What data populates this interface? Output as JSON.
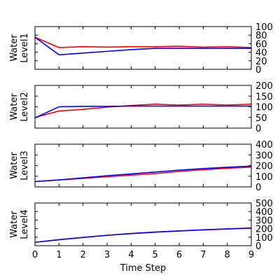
{
  "chart_data": [
    {
      "type": "line",
      "ylabel": [
        "Water",
        "Level1"
      ],
      "ylim": [
        0,
        100
      ],
      "yticks": [
        0,
        20,
        40,
        60,
        80,
        100
      ],
      "x": [
        0,
        1,
        2,
        3,
        4,
        5,
        6,
        7,
        8,
        9
      ],
      "series": [
        {
          "color": "#ff0000",
          "values": [
            75,
            51,
            53,
            52,
            53,
            53,
            54,
            52,
            53,
            51
          ]
        },
        {
          "color": "#0000ff",
          "values": [
            75,
            34,
            38,
            42,
            46,
            49,
            49,
            49,
            49,
            49
          ]
        }
      ]
    },
    {
      "type": "line",
      "ylabel": [
        "Water",
        "Level2"
      ],
      "ylim": [
        0,
        200
      ],
      "yticks": [
        0,
        50,
        100,
        150,
        200
      ],
      "x": [
        0,
        1,
        2,
        3,
        4,
        5,
        6,
        7,
        8,
        9
      ],
      "series": [
        {
          "color": "#ff0000",
          "values": [
            50,
            80,
            88,
            98,
            106,
            112,
            108,
            112,
            108,
            112
          ]
        },
        {
          "color": "#0000ff",
          "values": [
            48,
            100,
            102,
            102,
            103,
            103,
            103,
            103,
            103,
            103
          ]
        }
      ]
    },
    {
      "type": "line",
      "ylabel": [
        "Water",
        "Level3"
      ],
      "ylim": [
        0,
        400
      ],
      "yticks": [
        0,
        100,
        200,
        300,
        400
      ],
      "x": [
        0,
        1,
        2,
        3,
        4,
        5,
        6,
        7,
        8,
        9
      ],
      "series": [
        {
          "color": "#ff0000",
          "values": [
            50,
            65,
            80,
            95,
            110,
            125,
            145,
            160,
            175,
            185
          ]
        },
        {
          "color": "#0000ff",
          "values": [
            50,
            65,
            85,
            105,
            122,
            140,
            157,
            172,
            184,
            195
          ]
        }
      ]
    },
    {
      "type": "line",
      "ylabel": [
        "Water",
        "Level4"
      ],
      "ylim": [
        0,
        500
      ],
      "yticks": [
        0,
        100,
        200,
        300,
        400,
        500
      ],
      "xlabel": "Time Step",
      "xlim": [
        0,
        9
      ],
      "xticks": [
        0,
        1,
        2,
        3,
        4,
        5,
        6,
        7,
        8,
        9
      ],
      "x": [
        0,
        1,
        2,
        3,
        4,
        5,
        6,
        7,
        8,
        9
      ],
      "series": [
        {
          "color": "#ff0000",
          "values": [
            40,
            70,
            97,
            122,
            143,
            160,
            173,
            185,
            195,
            204
          ]
        },
        {
          "color": "#0000ff",
          "values": [
            40,
            70,
            97,
            122,
            142,
            158,
            173,
            186,
            197,
            208
          ]
        }
      ]
    }
  ]
}
